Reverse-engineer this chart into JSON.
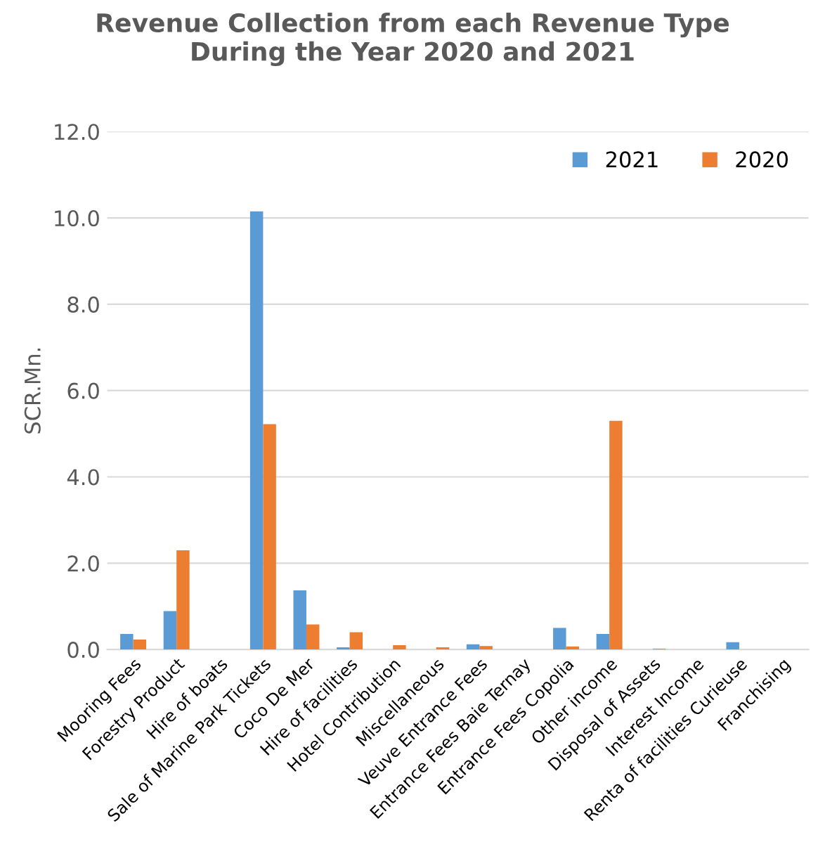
{
  "chart_data": {
    "type": "bar",
    "title": "Revenue Collection from each Revenue Type\nDuring the Year 2020 and 2021",
    "ylabel": "SCR.Mn.",
    "categories": [
      "Mooring Fees",
      "Forestry Product",
      "Hire of boats",
      "Sale of Marine Park Tickets",
      "Coco De Mer",
      "Hire of facilities",
      "Hotel Contribution",
      "Miscellaneous",
      "Veuve Entrance Fees",
      "Entrance Fees Baie Ternay",
      "Entrance Fees Copolia",
      "Other income",
      "Disposal of Assets",
      "Interest Income",
      "Renta of facilities Curieuse",
      "Franchising"
    ],
    "series": [
      {
        "name": "2021",
        "color": "#5b9bd5",
        "values": [
          0.36,
          0.89,
          0,
          10.15,
          1.37,
          0.05,
          0,
          0,
          0.12,
          0,
          0.5,
          0.36,
          0,
          0,
          0.17,
          0
        ]
      },
      {
        "name": "2020",
        "color": "#ed7d31",
        "values": [
          0.23,
          2.3,
          0,
          5.22,
          0.58,
          0.4,
          0.1,
          0.05,
          0.08,
          0,
          0.07,
          5.3,
          0.02,
          0,
          0,
          0
        ]
      }
    ],
    "ylim": [
      0,
      12
    ],
    "yticks": [
      {
        "value": 0,
        "label": "0.0"
      },
      {
        "value": 2,
        "label": "2.0"
      },
      {
        "value": 4,
        "label": "4.0"
      },
      {
        "value": 6,
        "label": "6.0"
      },
      {
        "value": 8,
        "label": "8.0"
      },
      {
        "value": 10,
        "label": "10.0"
      },
      {
        "value": 12,
        "label": "12.0"
      }
    ],
    "grid": "y",
    "legend": "top right"
  }
}
